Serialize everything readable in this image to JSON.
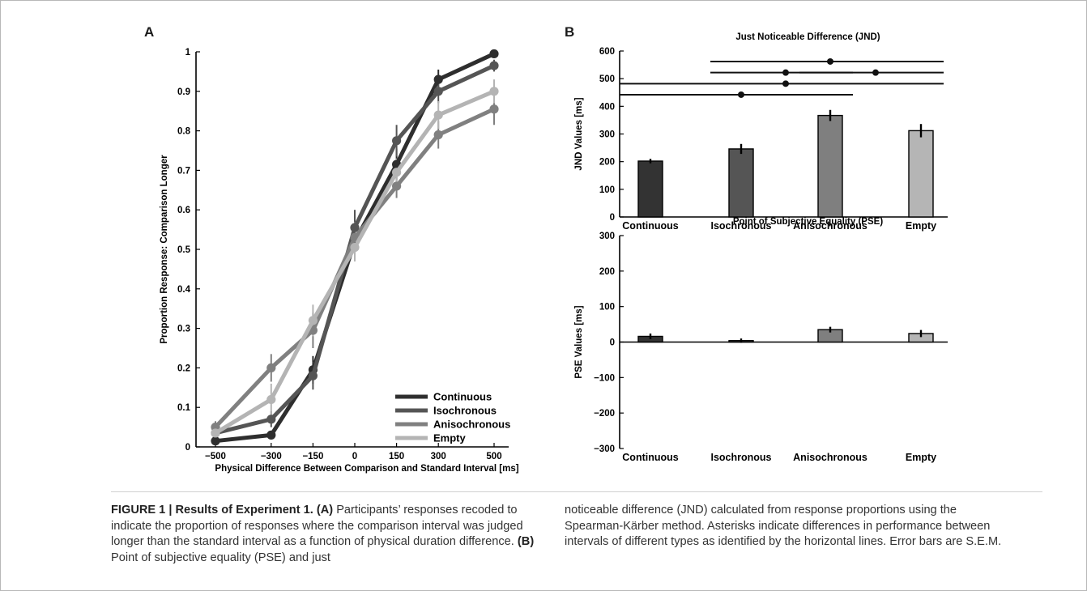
{
  "panels": {
    "a": "A",
    "b": "B"
  },
  "chart_data": [
    {
      "type": "line",
      "panel": "A",
      "title": "",
      "xlabel": "Physical Difference Between Comparison and Standard Interval [ms]",
      "ylabel": "Proportion Response: Comparison Longer",
      "x": [
        -500,
        -300,
        -150,
        0,
        150,
        300,
        500
      ],
      "x_ticks": [
        "−500",
        "−300",
        "−150",
        "0",
        "150",
        "300",
        "500"
      ],
      "y_ticks": [
        "0",
        "0.1",
        "0.2",
        "0.3",
        "0.4",
        "0.5",
        "0.6",
        "0.7",
        "0.8",
        "0.9",
        "1"
      ],
      "ylim": [
        0,
        1
      ],
      "legend_position": "bottom-right",
      "series": [
        {
          "name": "Continuous",
          "color": "#2e2e2e",
          "values": [
            0.015,
            0.03,
            0.195,
            0.52,
            0.715,
            0.93,
            0.995
          ],
          "errors": [
            0.01,
            0.01,
            0.035,
            0.05,
            0.04,
            0.025,
            0.005
          ]
        },
        {
          "name": "Isochronous",
          "color": "#555555",
          "values": [
            0.035,
            0.07,
            0.18,
            0.555,
            0.775,
            0.9,
            0.965
          ],
          "errors": [
            0.01,
            0.02,
            0.035,
            0.045,
            0.04,
            0.03,
            0.015
          ]
        },
        {
          "name": "Anisochronous",
          "color": "#808080",
          "values": [
            0.05,
            0.2,
            0.295,
            0.53,
            0.66,
            0.79,
            0.855
          ],
          "errors": [
            0.015,
            0.035,
            0.045,
            0.04,
            0.03,
            0.035,
            0.04
          ]
        },
        {
          "name": "Empty",
          "color": "#b4b4b4",
          "values": [
            0.035,
            0.12,
            0.32,
            0.505,
            0.695,
            0.84,
            0.9
          ],
          "errors": [
            0.01,
            0.04,
            0.04,
            0.035,
            0.035,
            0.035,
            0.03
          ]
        }
      ]
    },
    {
      "type": "bar",
      "panel": "B",
      "title": "Just Noticeable Difference (JND)",
      "xlabel": "",
      "ylabel": "JND Values [ms]",
      "categories": [
        "Continuous",
        "Isochronous",
        "Anisochronous",
        "Empty"
      ],
      "values": [
        202,
        246,
        367,
        312
      ],
      "errors": [
        8,
        18,
        20,
        24
      ],
      "colors": [
        "#333333",
        "#555555",
        "#7f7f7f",
        "#b5b5b5"
      ],
      "y_ticks": [
        "0",
        "100",
        "200",
        "300",
        "400",
        "500",
        "600"
      ],
      "ylim": [
        0,
        600
      ],
      "significance": [
        {
          "from": 0,
          "to": 2,
          "y": 442,
          "mark": 1
        },
        {
          "from": 0,
          "to": 3,
          "y": 482,
          "mark": 1.5
        },
        {
          "from": 1,
          "to": 2,
          "y": 522,
          "mark": 1.5
        },
        {
          "from": 2,
          "to": 3,
          "y": 522,
          "mark": 2.5
        },
        {
          "from": 1,
          "to": 3,
          "y": 562,
          "mark": 2
        }
      ]
    },
    {
      "type": "bar",
      "panel": "B",
      "title": "Point of Subjective Equality (PSE)",
      "xlabel": "",
      "ylabel": "PSE Values [ms]",
      "categories": [
        "Continuous",
        "Isochronous",
        "Anisochronous",
        "Empty"
      ],
      "values": [
        16,
        4,
        35,
        24
      ],
      "errors": [
        8,
        6,
        8,
        10
      ],
      "colors": [
        "#333333",
        "#555555",
        "#7f7f7f",
        "#b5b5b5"
      ],
      "y_ticks": [
        "−300",
        "−200",
        "−100",
        "0",
        "100",
        "200",
        "300"
      ],
      "ylim": [
        -300,
        300
      ]
    }
  ],
  "caption": {
    "label": "FIGURE 1 | Results of Experiment 1.",
    "a_tag": "(A)",
    "a_text": " Participants’ responses recoded to indicate the proportion of responses where the comparison interval was judged longer than the standard interval as a function of physical duration difference. ",
    "b_tag": "(B)",
    "b_text": " Point of subjective equality (PSE) and just noticeable difference (JND) calculated from response proportions using the Spearman-Kärber method. Asterisks indicate differences in performance between intervals of different types as identified by the horizontal lines. Error bars are S.E.M."
  }
}
